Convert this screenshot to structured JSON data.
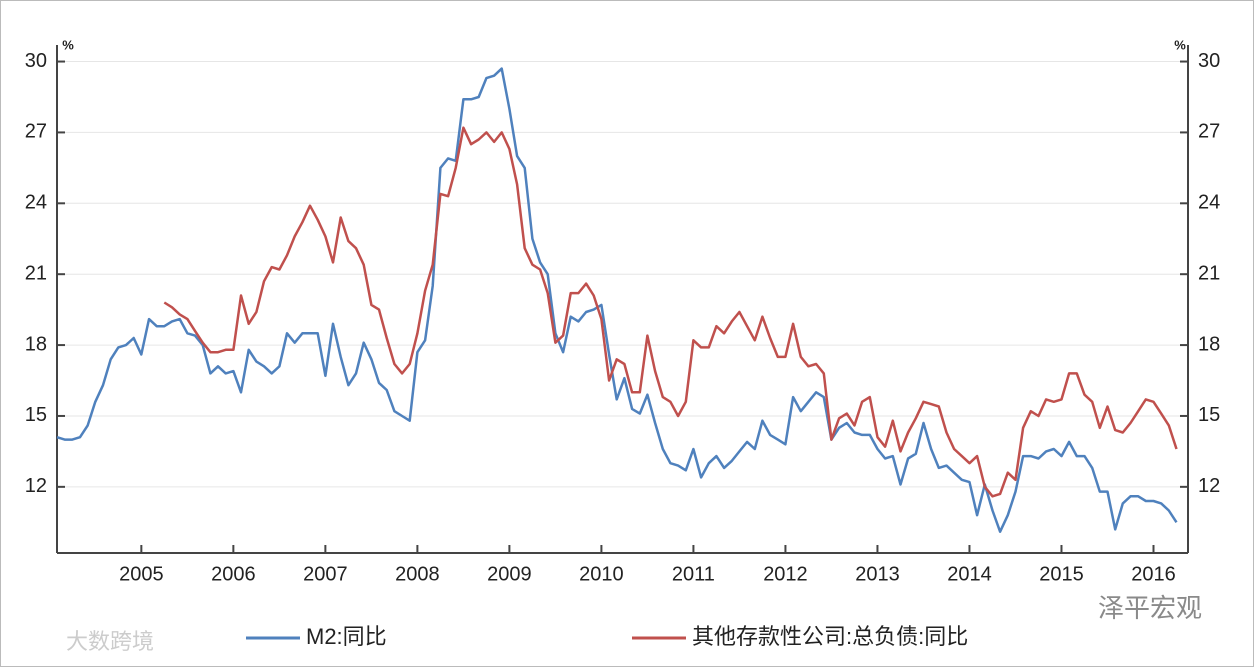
{
  "chart_data": {
    "type": "line",
    "y_unit": "%",
    "y2_unit": "%",
    "categories": [
      null,
      null,
      null,
      null,
      null,
      null,
      null,
      null,
      null,
      null,
      null,
      "2005",
      null,
      null,
      null,
      null,
      null,
      null,
      null,
      null,
      null,
      null,
      null,
      "2006",
      null,
      null,
      null,
      null,
      null,
      null,
      null,
      null,
      null,
      null,
      null,
      "2007",
      null,
      null,
      null,
      null,
      null,
      null,
      null,
      null,
      null,
      null,
      null,
      "2008",
      null,
      null,
      null,
      null,
      null,
      null,
      null,
      null,
      null,
      null,
      null,
      "2009",
      null,
      null,
      null,
      null,
      null,
      null,
      null,
      null,
      null,
      null,
      null,
      "2010",
      null,
      null,
      null,
      null,
      null,
      null,
      null,
      null,
      null,
      null,
      null,
      "2011",
      null,
      null,
      null,
      null,
      null,
      null,
      null,
      null,
      null,
      null,
      null,
      "2012",
      null,
      null,
      null,
      null,
      null,
      null,
      null,
      null,
      null,
      null,
      null,
      "2013",
      null,
      null,
      null,
      null,
      null,
      null,
      null,
      null,
      null,
      null,
      null,
      "2014",
      null,
      null,
      null,
      null,
      null,
      null,
      null,
      null,
      null,
      null,
      null,
      "2015",
      null,
      null,
      null,
      null,
      null,
      null,
      null,
      null,
      null,
      null,
      null,
      "2016",
      null,
      null,
      null
    ],
    "series": [
      {
        "name": "M2:同比",
        "color": "#4f81bd",
        "values": [
          14.1,
          14.0,
          14.0,
          14.1,
          14.6,
          15.6,
          16.3,
          17.4,
          17.9,
          18.0,
          18.3,
          17.6,
          19.1,
          18.8,
          18.8,
          19.0,
          19.1,
          18.5,
          18.4,
          18.0,
          16.8,
          17.1,
          16.8,
          16.9,
          16.0,
          17.8,
          17.3,
          17.1,
          16.8,
          17.1,
          18.5,
          18.1,
          18.5,
          18.5,
          18.5,
          16.7,
          18.9,
          17.5,
          16.3,
          16.8,
          18.1,
          17.4,
          16.4,
          16.1,
          15.2,
          15.0,
          14.8,
          17.7,
          18.2,
          20.5,
          25.5,
          25.9,
          25.8,
          28.4,
          28.4,
          28.5,
          29.3,
          29.4,
          29.7,
          28.0,
          26.0,
          25.5,
          22.5,
          21.5,
          21.0,
          18.5,
          17.7,
          19.2,
          19.0,
          19.4,
          19.5,
          19.7,
          17.6,
          15.7,
          16.6,
          15.3,
          15.1,
          15.9,
          14.7,
          13.6,
          13.0,
          12.9,
          12.7,
          13.6,
          12.4,
          13.0,
          13.3,
          12.8,
          13.1,
          13.5,
          13.9,
          13.6,
          14.8,
          14.2,
          14.0,
          13.8,
          15.8,
          15.2,
          15.6,
          16.0,
          15.8,
          14.0,
          14.5,
          14.7,
          14.3,
          14.2,
          14.2,
          13.6,
          13.2,
          13.3,
          12.1,
          13.2,
          13.4,
          14.7,
          13.6,
          12.8,
          12.9,
          12.6,
          12.3,
          12.2,
          10.8,
          12.1,
          11.0,
          10.1,
          10.8,
          11.8,
          13.3,
          13.3,
          13.2,
          13.5,
          13.6,
          13.3,
          13.9,
          13.3,
          13.3,
          12.8,
          11.8,
          11.8,
          10.2,
          11.3,
          11.6,
          11.6,
          11.4,
          11.4,
          11.3,
          11.0,
          10.5
        ]
      },
      {
        "name": "其他存款性公司:总负债:同比",
        "color": "#c0504d",
        "axis": "y2",
        "values": [
          null,
          null,
          null,
          null,
          null,
          null,
          null,
          null,
          null,
          null,
          null,
          null,
          null,
          null,
          19.8,
          19.6,
          19.3,
          19.1,
          18.6,
          18.1,
          17.7,
          17.7,
          17.8,
          17.8,
          20.1,
          18.9,
          19.4,
          20.7,
          21.3,
          21.2,
          21.8,
          22.6,
          23.2,
          23.9,
          23.3,
          22.6,
          21.5,
          23.4,
          22.4,
          22.1,
          21.4,
          19.7,
          19.5,
          18.3,
          17.2,
          16.8,
          17.2,
          18.5,
          20.3,
          21.4,
          24.4,
          24.3,
          25.5,
          27.2,
          26.5,
          26.7,
          27.0,
          26.6,
          27.0,
          26.3,
          24.8,
          22.1,
          21.4,
          21.2,
          20.2,
          18.1,
          18.4,
          20.2,
          20.2,
          20.6,
          20.1,
          19.1,
          16.5,
          17.4,
          17.2,
          16.0,
          16.0,
          18.4,
          16.9,
          15.8,
          15.6,
          15.0,
          15.6,
          18.2,
          17.9,
          17.9,
          18.8,
          18.5,
          19.0,
          19.4,
          18.8,
          18.2,
          19.2,
          18.3,
          17.5,
          17.5,
          18.9,
          17.5,
          17.1,
          17.2,
          16.8,
          14.0,
          14.9,
          15.1,
          14.6,
          15.6,
          15.8,
          14.1,
          13.7,
          14.8,
          13.5,
          14.3,
          14.9,
          15.6,
          15.5,
          15.4,
          14.3,
          13.6,
          13.3,
          13.0,
          13.3,
          12.0,
          11.6,
          11.7,
          12.6,
          12.3,
          14.5,
          15.2,
          15.0,
          15.7,
          15.6,
          15.7,
          16.8,
          16.8,
          15.9,
          15.6,
          14.5,
          15.4,
          14.4,
          14.3,
          14.7,
          15.2,
          15.7,
          15.6,
          15.1,
          14.6,
          13.6
        ]
      }
    ],
    "ylim": [
      9.2,
      30.7
    ],
    "yticks": [
      12,
      15,
      18,
      21,
      24,
      27,
      30
    ],
    "y2lim": [
      9.2,
      30.7
    ],
    "y2ticks": [
      12,
      15,
      18,
      21,
      24,
      27,
      30
    ],
    "grid": true,
    "legend": "bottom",
    "watermarks": [
      "泽平宏观",
      "大数跨境"
    ]
  }
}
